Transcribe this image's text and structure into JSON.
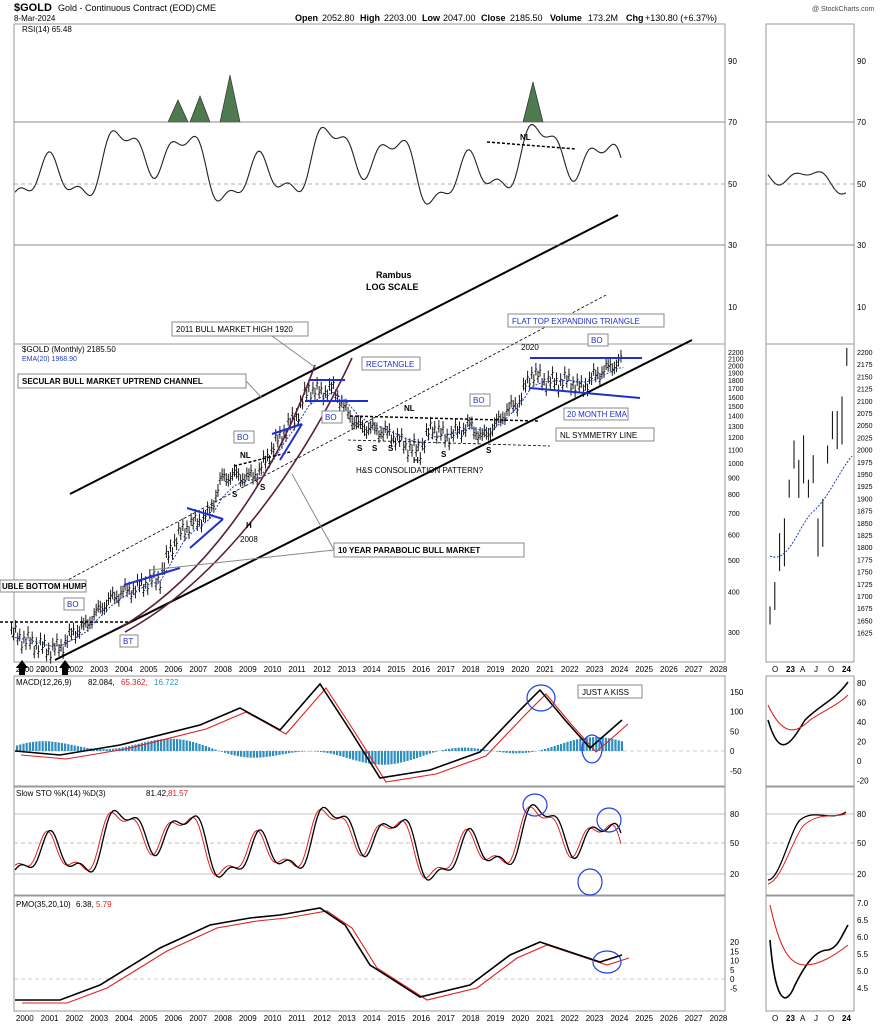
{
  "header": {
    "symbol": "$GOLD",
    "description": "Gold - Continuous Contract (EOD)",
    "exchange": "CME",
    "date": "8-Mar-2024",
    "open_label": "Open",
    "open": "2052.80",
    "high_label": "High",
    "high": "2203.00",
    "low_label": "Low",
    "low": "2047.00",
    "close_label": "Close",
    "close": "2185.50",
    "volume_label": "Volume",
    "volume": "173.2M",
    "chg_label": "Chg",
    "chg": "+130.80 (+6.37%)",
    "watermark": "@ StockCharts.com"
  },
  "rsi_panel": {
    "legend": "RSI(14) 65.48",
    "ticks": [
      "90",
      "70",
      "50",
      "30",
      "10"
    ]
  },
  "price_panel": {
    "legend_symbol": "$GOLD (Monthly) 2185.50",
    "legend_ema": "EMA(20) 1968.90",
    "ticks": [
      "2200",
      "2100",
      "2000",
      "1900",
      "1800",
      "1700",
      "1600",
      "1500",
      "1400",
      "1300",
      "1200",
      "1100",
      "1000",
      "900",
      "800",
      "700",
      "600",
      "500",
      "400",
      "300"
    ],
    "inset_ticks": [
      "2200",
      "2175",
      "2150",
      "2125",
      "2100",
      "2075",
      "2050",
      "2025",
      "2000",
      "1975",
      "1950",
      "1925",
      "1900",
      "1875",
      "1850",
      "1825",
      "1800",
      "1775",
      "1750",
      "1725",
      "1700",
      "1675",
      "1650",
      "1625"
    ],
    "x_labels": [
      "2000",
      "2001",
      "2002",
      "2003",
      "2004",
      "2005",
      "2006",
      "2007",
      "2008",
      "2009",
      "2010",
      "2011",
      "2012",
      "2013",
      "2014",
      "2015",
      "2016",
      "2017",
      "2018",
      "2019",
      "2020",
      "2021",
      "2022",
      "2023",
      "2024",
      "2025",
      "2026",
      "2027",
      "2028"
    ],
    "x_labels_first": "2000 20",
    "inset_x_labels": [
      "O",
      "23",
      "A",
      "J",
      "O",
      "24"
    ]
  },
  "annotations": {
    "rambus": "Rambus",
    "log_scale": "LOG SCALE",
    "bull_high": "2011 BULL MARKET HIGH 1920",
    "secular": "SECULAR BULL MARKET UPTREND CHANNEL",
    "rectangle": "RECTANGLE",
    "flat_top": "FLAT TOP EXPANDING TRIANGLE",
    "bo": "BO",
    "bt": "BT",
    "nl": "NL",
    "s": "S",
    "h": "H",
    "year_2008": "2008",
    "year_2020": "2020",
    "ema20_month": "20 MONTH EMA",
    "nl_symmetry": "NL SYMMETRY LINE",
    "hs_consolidation": "H&S CONSOLIDATION PATTERN?",
    "parabolic": "10 YEAR PARABOLIC BULL MARKET",
    "double_bottom": "UBLE BOTTOM HUMP",
    "just_a_kiss": "JUST A KISS"
  },
  "macd_panel": {
    "legend_name": "MACD(12,26,9)",
    "value_macd": "82.084,",
    "value_signal": "65.362,",
    "value_hist": "16.722",
    "ticks": [
      "150",
      "100",
      "50",
      "0",
      "-50"
    ],
    "inset_ticks": [
      "80",
      "60",
      "40",
      "20",
      "0",
      "-20"
    ]
  },
  "sto_panel": {
    "legend_name": "Slow STO %K(14) %D(3)",
    "value_k": "81.42,",
    "value_d": "81.57",
    "ticks": [
      "80",
      "50",
      "20"
    ]
  },
  "pmo_panel": {
    "legend_name": "PMO(35,20,10)",
    "value_pmo": "6.38,",
    "value_signal": "5.79",
    "ticks": [
      "20",
      "15",
      "10",
      "5",
      "0",
      "-5"
    ],
    "inset_ticks": [
      "7.0",
      "6.5",
      "6.0",
      "5.5",
      "5.0",
      "4.5"
    ]
  },
  "colors": {
    "price": "#000000",
    "ema": "#1f3fbf",
    "signal": "#e02020",
    "histogram": "#2e8fbf",
    "rsi_fill": "#4f7a4f",
    "pattern_blue": "#1f2fd0",
    "parabolic": "#5a1f3a"
  },
  "chart_data": {
    "type": "line",
    "title": "$GOLD Gold - Continuous Contract (EOD) CME",
    "scale": "log",
    "xlim": [
      2000,
      2028
    ],
    "ylim": [
      250,
      2250
    ],
    "x": [
      1999.5,
      2000,
      2000.5,
      2001,
      2001.5,
      2002,
      2002.5,
      2003,
      2003.5,
      2004,
      2004.5,
      2005,
      2005.5,
      2006,
      2006.5,
      2007,
      2007.5,
      2008,
      2008.5,
      2009,
      2009.5,
      2010,
      2010.5,
      2011,
      2011.5,
      2012,
      2012.5,
      2013,
      2013.5,
      2014,
      2014.5,
      2015,
      2015.5,
      2016,
      2016.5,
      2017,
      2017.5,
      2018,
      2018.5,
      2019,
      2019.5,
      2020,
      2020.5,
      2021,
      2021.5,
      2022,
      2022.5,
      2023,
      2023.5,
      2024,
      2024.2
    ],
    "series": [
      {
        "name": "$GOLD (Monthly)",
        "values": [
          300,
          285,
          275,
          265,
          270,
          300,
          315,
          350,
          380,
          400,
          410,
          430,
          440,
          560,
          630,
          660,
          700,
          900,
          920,
          900,
          940,
          1100,
          1250,
          1400,
          1700,
          1650,
          1700,
          1450,
          1300,
          1280,
          1250,
          1200,
          1120,
          1100,
          1300,
          1200,
          1250,
          1310,
          1200,
          1300,
          1450,
          1550,
          1900,
          1800,
          1780,
          1800,
          1700,
          1850,
          1950,
          2050,
          2185
        ]
      },
      {
        "name": "EMA(20)",
        "values": [
          290,
          285,
          280,
          272,
          272,
          285,
          300,
          330,
          360,
          385,
          400,
          420,
          430,
          500,
          580,
          630,
          670,
          780,
          850,
          880,
          900,
          1000,
          1150,
          1300,
          1500,
          1600,
          1650,
          1550,
          1400,
          1320,
          1280,
          1230,
          1180,
          1150,
          1200,
          1220,
          1240,
          1280,
          1260,
          1280,
          1380,
          1500,
          1720,
          1780,
          1790,
          1800,
          1770,
          1800,
          1880,
          1960,
          1969
        ]
      }
    ]
  }
}
